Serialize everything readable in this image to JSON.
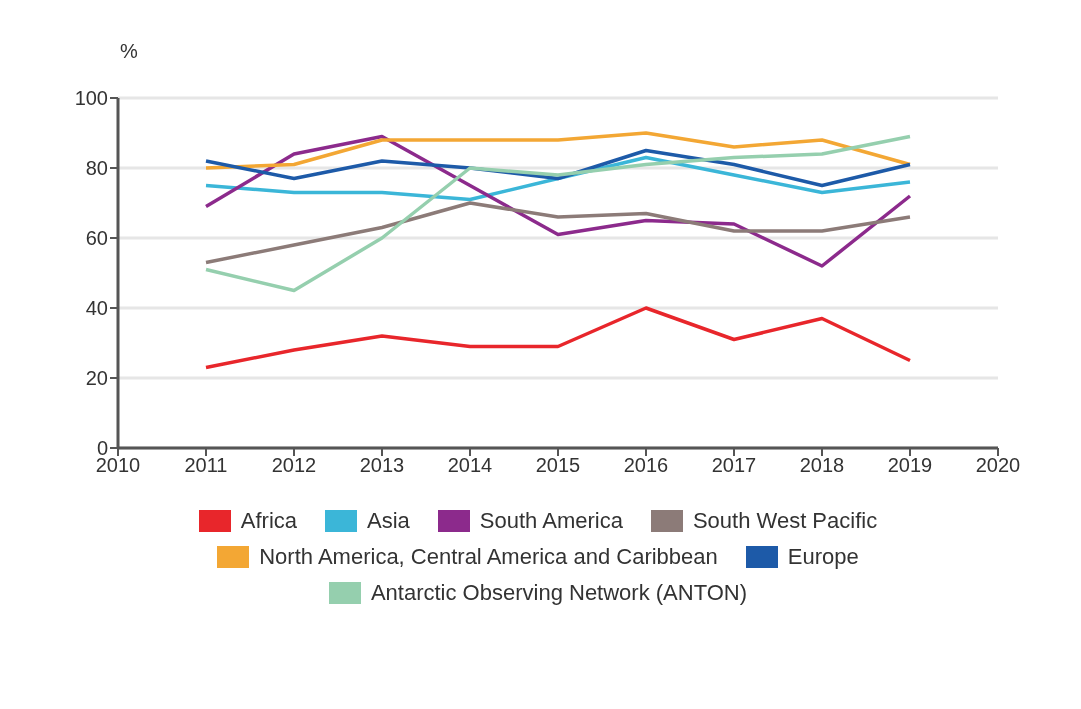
{
  "chart_data": {
    "type": "line",
    "ylabel": "%",
    "x": [
      2011,
      2012,
      2013,
      2014,
      2015,
      2016,
      2017,
      2018,
      2019
    ],
    "xlim": [
      2010,
      2020
    ],
    "xticks": [
      2010,
      2011,
      2012,
      2013,
      2014,
      2015,
      2016,
      2017,
      2018,
      2019,
      2020
    ],
    "ylim": [
      0,
      100
    ],
    "yticks": [
      0,
      20,
      40,
      60,
      80,
      100
    ],
    "grid": "y",
    "legend": "bottom",
    "marker": "none",
    "line_style": "solid",
    "series": [
      {
        "name": "Africa",
        "color": "#e8262b",
        "values": [
          23,
          28,
          32,
          29,
          29,
          40,
          31,
          37,
          25
        ]
      },
      {
        "name": "Asia",
        "color": "#3bb6d8",
        "values": [
          75,
          73,
          73,
          71,
          77,
          83,
          78,
          73,
          76
        ]
      },
      {
        "name": "South America",
        "color": "#8c2a8c",
        "values": [
          69,
          84,
          89,
          75,
          61,
          65,
          64,
          52,
          72
        ]
      },
      {
        "name": "South West Pacific",
        "color": "#8c7b78",
        "values": [
          53,
          58,
          63,
          70,
          66,
          67,
          62,
          62,
          66
        ]
      },
      {
        "name": "North America, Central America and Caribbean",
        "color": "#f3a734",
        "values": [
          80,
          81,
          88,
          88,
          88,
          90,
          86,
          88,
          81
        ]
      },
      {
        "name": "Europe",
        "color": "#1d5aa8",
        "values": [
          82,
          77,
          82,
          80,
          77,
          85,
          81,
          75,
          81
        ]
      },
      {
        "name": "Antarctic Observing Network (ANTON)",
        "color": "#95cfae",
        "values": [
          51,
          45,
          60,
          80,
          78,
          81,
          83,
          84,
          89
        ]
      }
    ]
  }
}
